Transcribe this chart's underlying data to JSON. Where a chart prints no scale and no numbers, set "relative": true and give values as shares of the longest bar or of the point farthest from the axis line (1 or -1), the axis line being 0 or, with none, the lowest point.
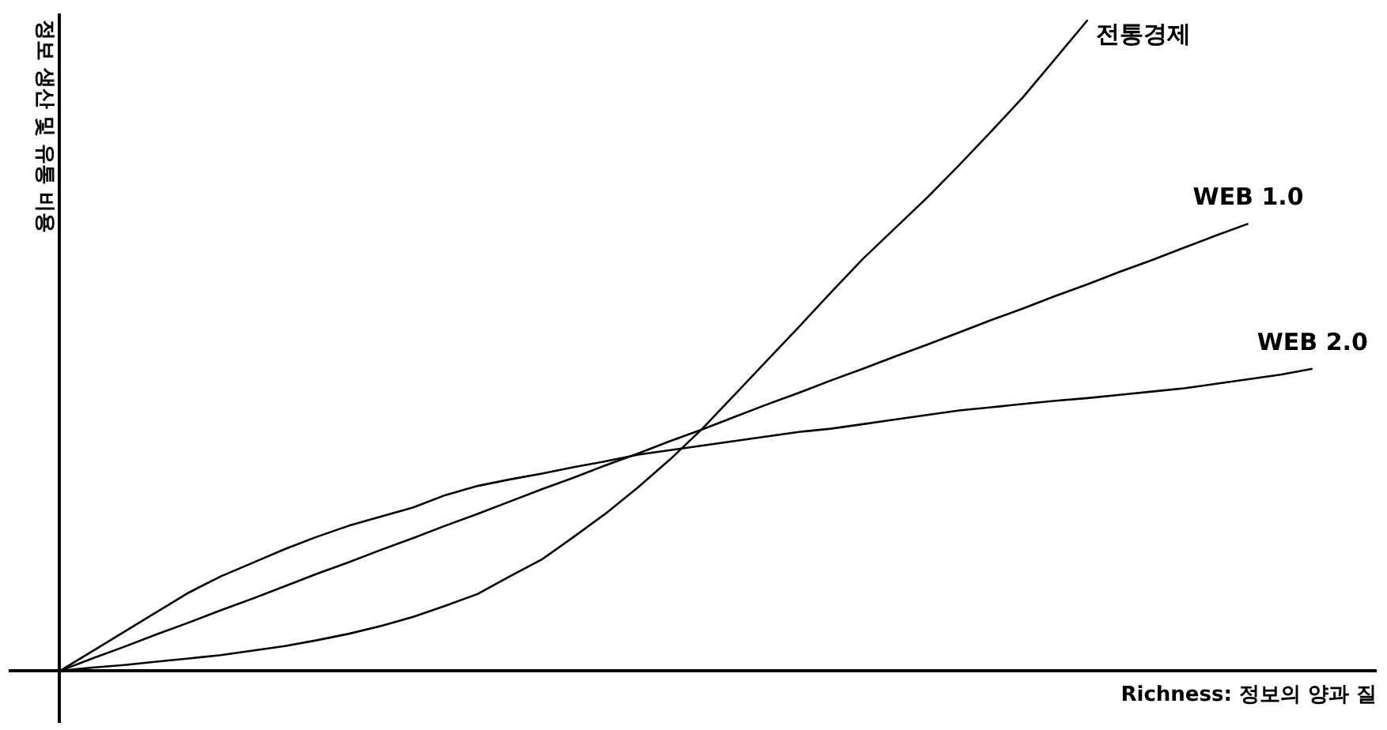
{
  "chart_data": {
    "type": "line",
    "relative": true,
    "xlabel": "Richness: 정보의 양과 질",
    "ylabel": "정보 생산 및 유통 비용",
    "categories": [
      null,
      null,
      null,
      null,
      null,
      null,
      null,
      null,
      null,
      null,
      null,
      null,
      null,
      null,
      null,
      null,
      null,
      null,
      null,
      null,
      null,
      null,
      null,
      null,
      null,
      null,
      null,
      null,
      null,
      null,
      null,
      null,
      null,
      null,
      null,
      null,
      null,
      null,
      null,
      null
    ],
    "series": [
      {
        "name": "전통경제",
        "color": "#000000",
        "values": [
          0,
          0.005,
          0.009,
          0.014,
          0.019,
          0.024,
          0.031,
          0.038,
          0.047,
          0.057,
          0.069,
          0.083,
          0.1,
          0.118,
          0.145,
          0.171,
          0.206,
          0.242,
          0.282,
          0.325,
          0.372,
          0.424,
          0.476,
          0.528,
          0.581,
          0.633,
          0.68,
          0.727,
          0.777,
          0.829,
          0.882,
          0.941,
          1,
          null,
          null,
          null,
          null,
          null,
          null,
          null
        ]
      },
      {
        "name": "WEB 1.0",
        "color": "#000000",
        "values": [
          0,
          0.019,
          0.037,
          0.056,
          0.074,
          0.093,
          0.111,
          0.13,
          0.149,
          0.167,
          0.186,
          0.204,
          0.223,
          0.241,
          0.26,
          0.279,
          0.297,
          0.316,
          0.334,
          0.353,
          0.371,
          0.39,
          0.409,
          0.427,
          0.446,
          0.464,
          0.483,
          0.501,
          0.52,
          0.539,
          0.557,
          0.576,
          0.594,
          0.613,
          0.631,
          0.65,
          0.669,
          0.687,
          null,
          null
        ]
      },
      {
        "name": "WEB 2.0",
        "color": "#000000",
        "values": [
          0,
          0.03,
          0.06,
          0.09,
          0.12,
          0.145,
          0.166,
          0.187,
          0.206,
          0.223,
          0.237,
          0.251,
          0.27,
          0.284,
          0.294,
          0.303,
          0.313,
          0.322,
          0.332,
          0.339,
          0.346,
          0.353,
          0.36,
          0.367,
          0.372,
          0.379,
          0.386,
          0.393,
          0.4,
          0.405,
          0.41,
          0.415,
          0.419,
          0.424,
          0.429,
          0.434,
          0.441,
          0.448,
          0.455,
          0.464
        ]
      }
    ],
    "marker": "none",
    "line_style": "solid"
  }
}
